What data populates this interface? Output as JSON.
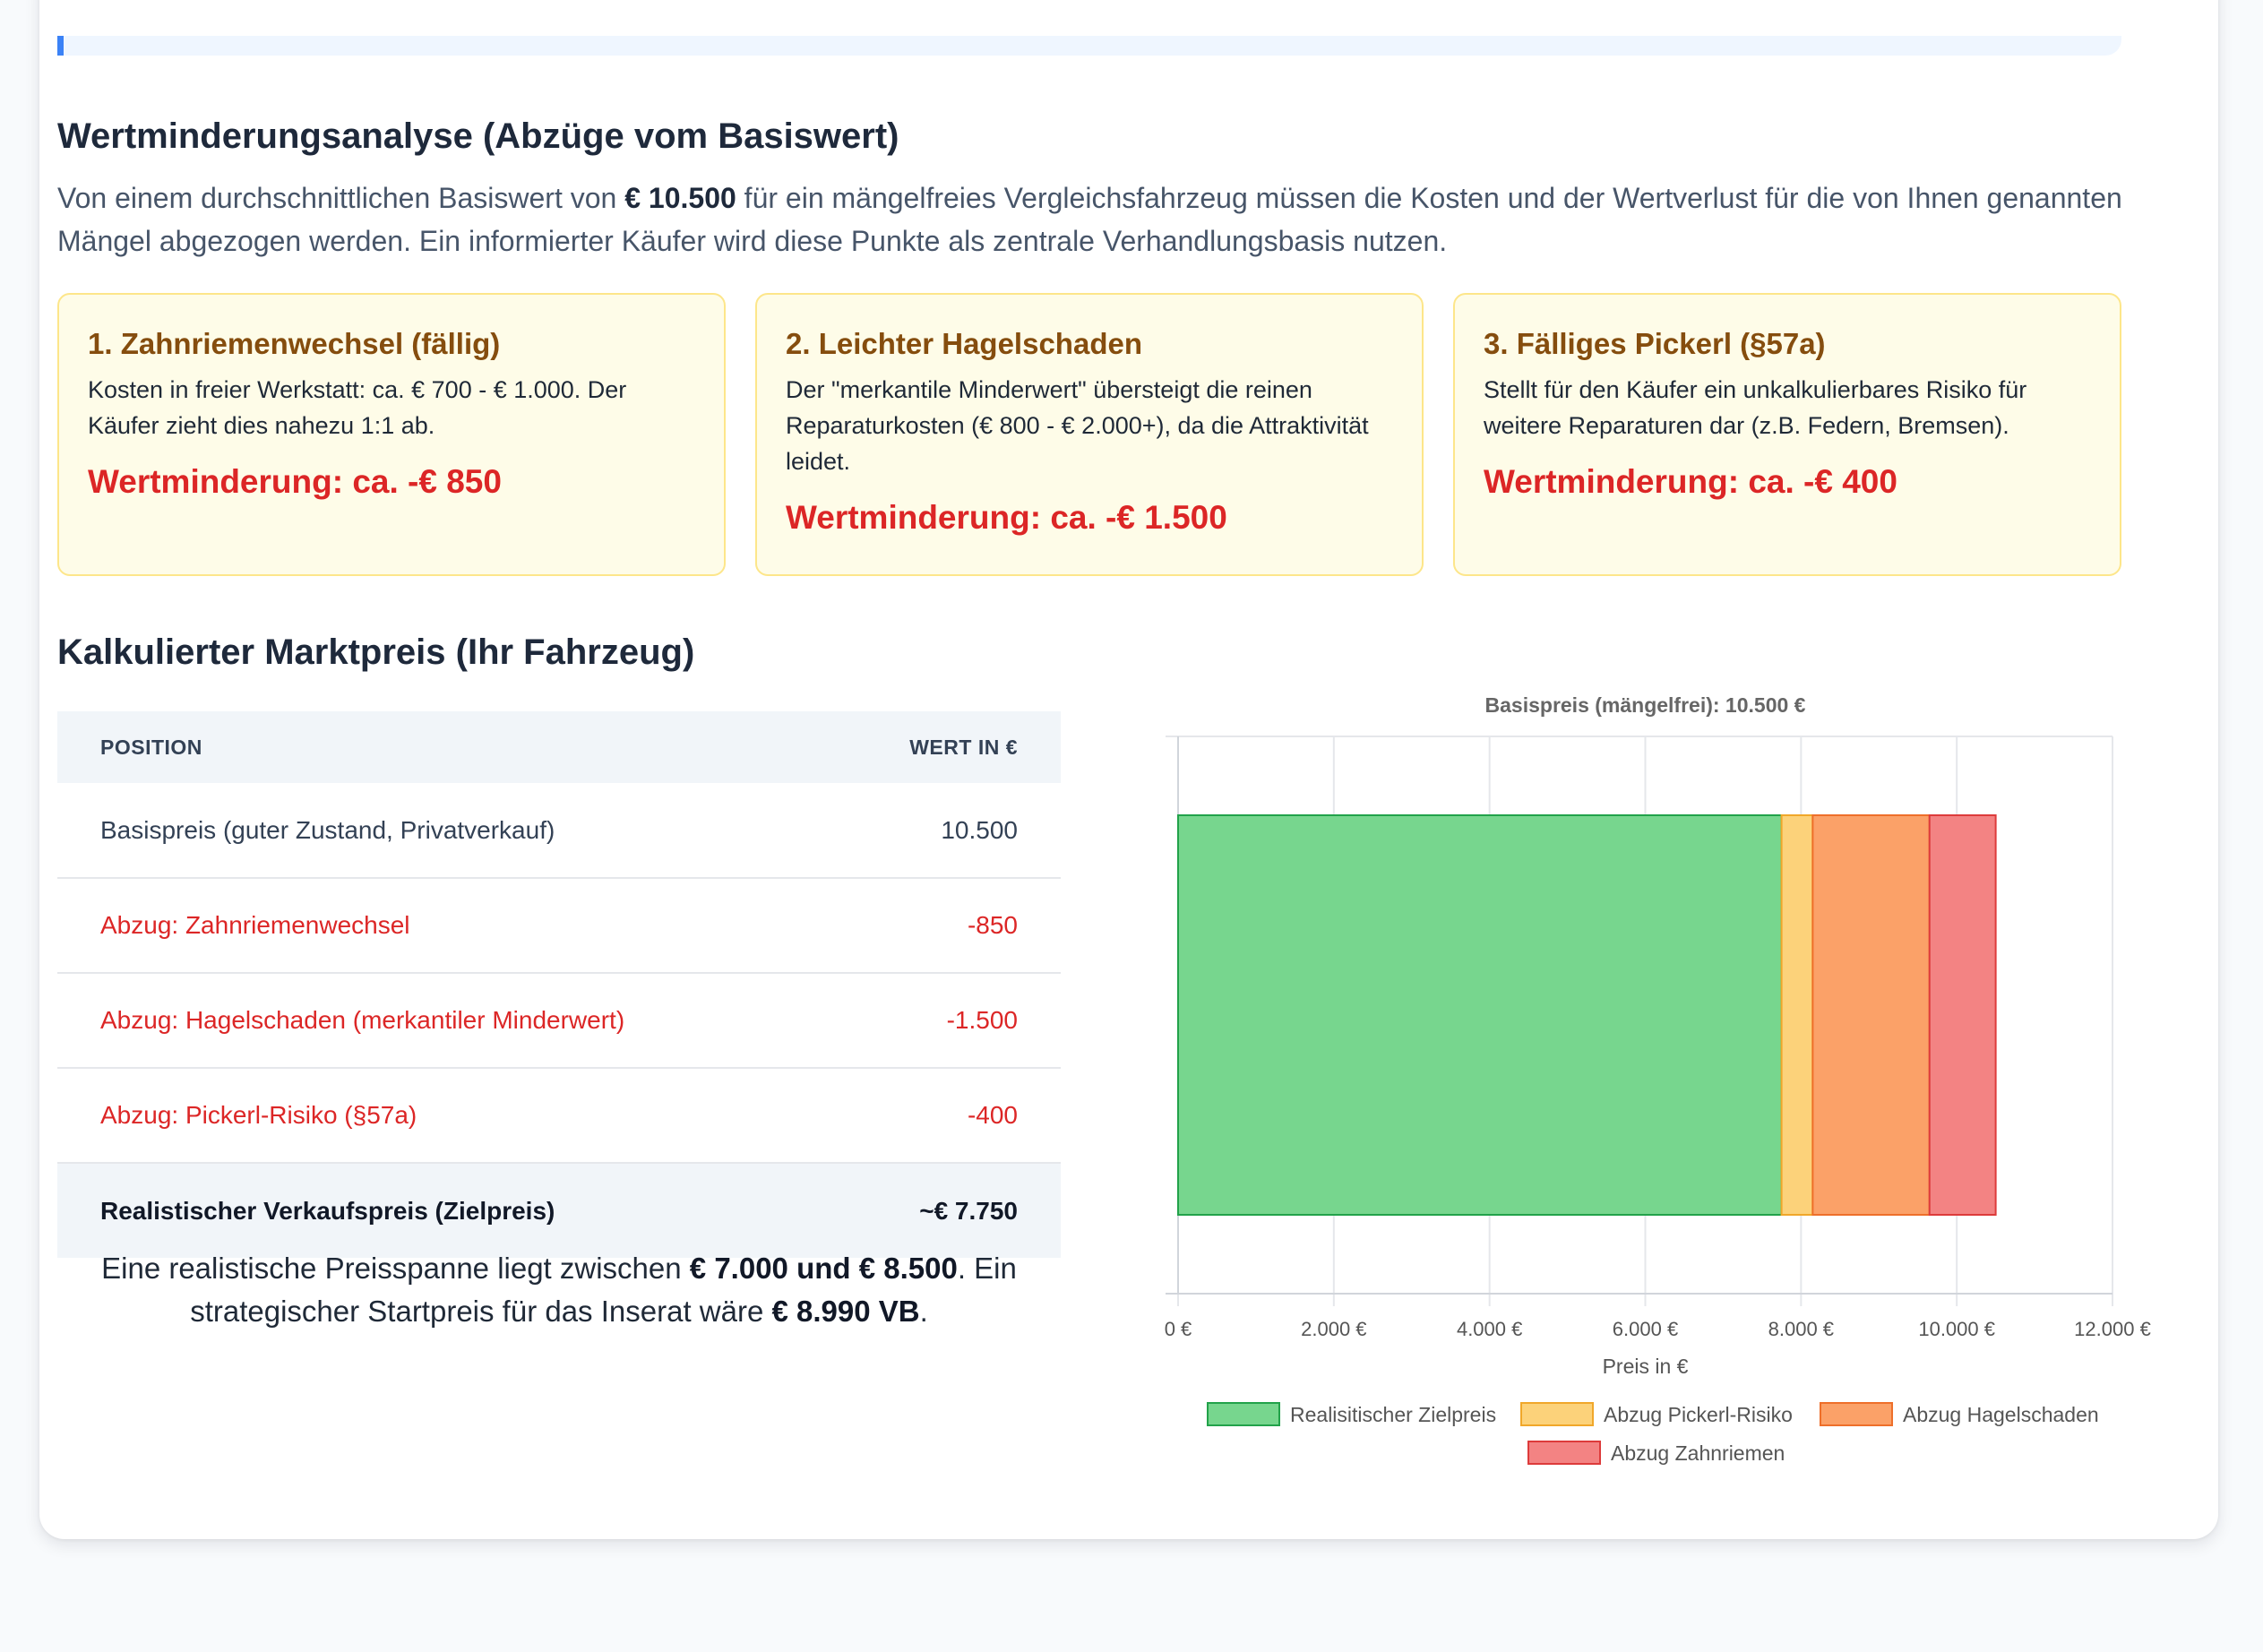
{
  "analysis": {
    "title": "Wertminderungsanalyse (Abzüge vom Basiswert)",
    "intro_before": "Von einem durchschnittlichen Basiswert von ",
    "intro_value": "€ 10.500",
    "intro_after": " für ein mängelfreies Vergleichsfahrzeug müssen die Kosten und der Wertverlust für die von Ihnen genannten Mängel abgezogen werden. Ein informierter Käufer wird diese Punkte als zentrale Verhandlungsbasis nutzen."
  },
  "defects": [
    {
      "title": "1. Zahnriemenwechsel (fällig)",
      "desc": "Kosten in freier Werkstatt: ca. € 700 - € 1.000. Der Käufer zieht dies nahezu 1:1 ab.",
      "loss": "Wertminderung: ca. -€ 850"
    },
    {
      "title": "2. Leichter Hagelschaden",
      "desc": "Der \"merkantile Minderwert\" übersteigt die reinen Reparaturkosten (€ 800 - € 2.000+), da die Attraktivität leidet.",
      "loss": "Wertminderung: ca. -€ 1.500"
    },
    {
      "title": "3. Fälliges Pickerl (§57a)",
      "desc": "Stellt für den Käufer ein unkalkulierbares Risiko für weitere Reparaturen dar (z.B. Federn, Bremsen).",
      "loss": "Wertminderung: ca. -€ 400"
    }
  ],
  "market": {
    "title": "Kalkulierter Marktpreis (Ihr Fahrzeug)",
    "table": {
      "col_position": "Position",
      "col_value": "Wert in €",
      "rows": [
        {
          "label": "Basispreis (guter Zustand, Privatverkauf)",
          "value": "10.500"
        },
        {
          "label": "Abzug: Zahnriemenwechsel",
          "value": "-850"
        },
        {
          "label": "Abzug: Hagelschaden (merkantiler Minderwert)",
          "value": "-1.500"
        },
        {
          "label": "Abzug: Pickerl-Risiko (§57a)",
          "value": "-400"
        }
      ],
      "total_label": "Realistischer Verkaufspreis (Zielpreis)",
      "total_value": "~€ 7.750"
    },
    "range_before": "Eine realistische Preisspanne liegt zwischen ",
    "range_value": "€ 7.000 und € 8.500",
    "range_middle": ". Ein strategischer Startpreis für das Inserat wäre ",
    "start_value": "€ 8.990 VB",
    "range_end": "."
  },
  "colors": {
    "deduction_red": "#dc2626",
    "defect_title": "#854d0e",
    "accent_blue": "#3b82f6"
  },
  "chart_data": {
    "type": "bar",
    "orientation": "horizontal",
    "stacked": true,
    "title": "Basispreis (mängelfrei): 10.500 €",
    "xlabel": "Preis in €",
    "xlim": [
      0,
      12000
    ],
    "x_ticks": [
      0,
      2000,
      4000,
      6000,
      8000,
      10000,
      12000
    ],
    "x_tick_labels": [
      "0 €",
      "2.000 €",
      "4.000 €",
      "6.000 €",
      "8.000 €",
      "10.000 €",
      "12.000 €"
    ],
    "grid": true,
    "legend_position": "bottom",
    "series": [
      {
        "name": "Realisitischer Zielpreis",
        "values": [
          7750
        ],
        "color": "#77d68e",
        "border": "#22a24a"
      },
      {
        "name": "Abzug Pickerl-Risiko",
        "values": [
          400
        ],
        "color": "#fcd27a",
        "border": "#f0a72a"
      },
      {
        "name": "Abzug Hagelschaden",
        "values": [
          1500
        ],
        "color": "#fba168",
        "border": "#ee6f2a"
      },
      {
        "name": "Abzug Zahnriemen",
        "values": [
          850
        ],
        "color": "#f38383",
        "border": "#dd3b3b"
      }
    ]
  }
}
